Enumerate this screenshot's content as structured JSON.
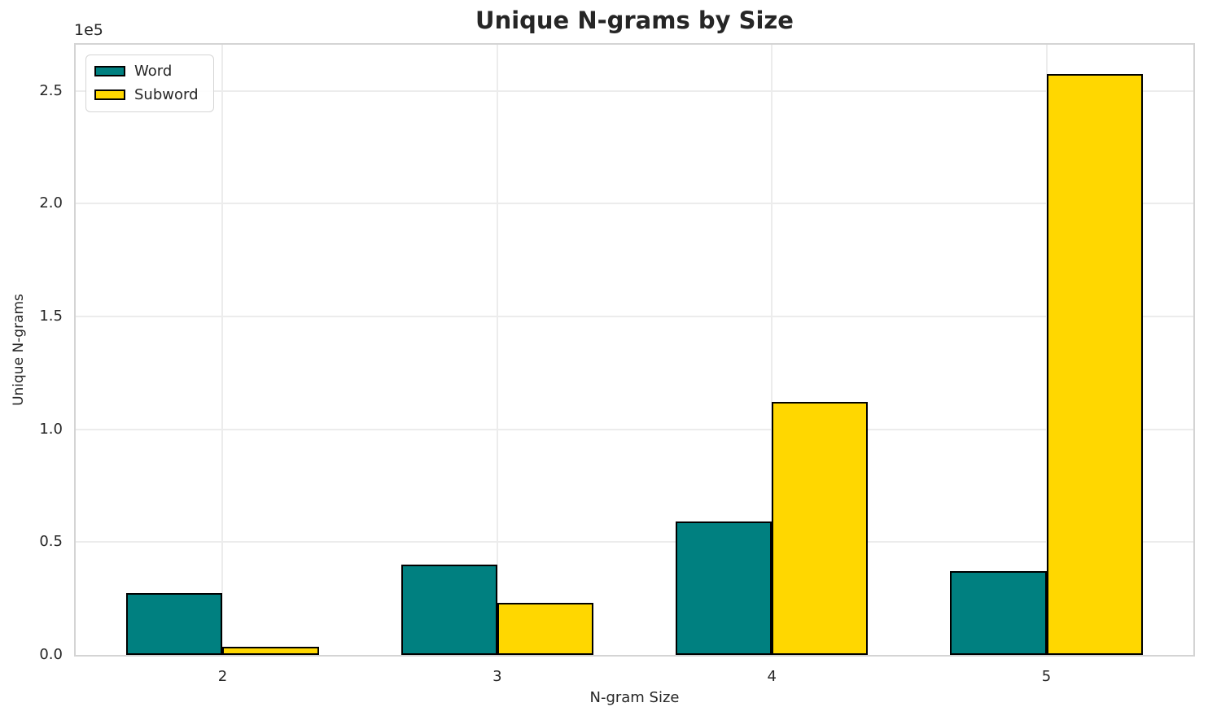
{
  "chart_data": {
    "type": "bar",
    "title": "Unique N-grams by Size",
    "xlabel": "N-gram Size",
    "ylabel": "Unique N-grams",
    "y_offset_text": "1e5",
    "categories": [
      "2",
      "3",
      "4",
      "5"
    ],
    "series": [
      {
        "name": "Word",
        "color": "#008080",
        "values": [
          27500,
          40000,
          59000,
          37000
        ]
      },
      {
        "name": "Subword",
        "color": "#FFD700",
        "values": [
          3500,
          23000,
          112000,
          257500
        ]
      }
    ],
    "bar_edge_color": "#000000",
    "bar_width": 0.35,
    "xlim": [
      -0.535,
      3.535
    ],
    "ylim": [
      0,
      270375
    ],
    "yticks": {
      "values": [
        0,
        50000,
        100000,
        150000,
        200000,
        250000
      ],
      "labels": [
        "0.0",
        "0.5",
        "1.0",
        "1.5",
        "2.0",
        "2.5"
      ]
    },
    "grid": true,
    "legend": {
      "position": "upper left"
    },
    "colors": {
      "grid": "#ececec",
      "spine": "#d4d4d4",
      "text": "#262626",
      "background": "#ffffff"
    }
  }
}
